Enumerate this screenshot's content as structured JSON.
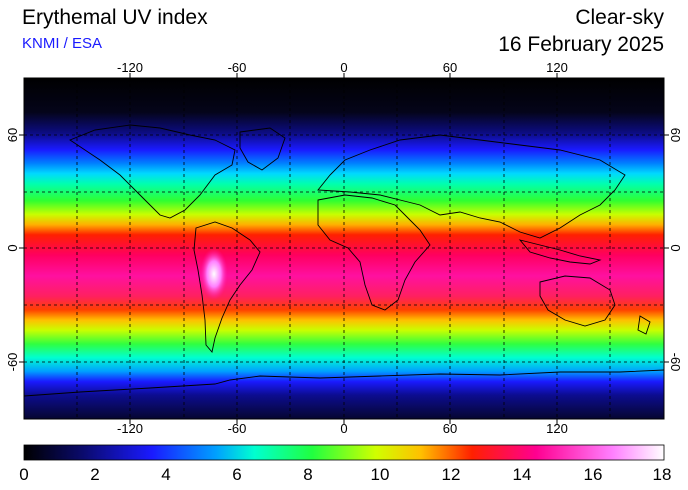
{
  "header": {
    "title": "Erythemal UV index",
    "credit": "KNMI / ESA",
    "sky_condition": "Clear-sky",
    "date": "16 February 2025"
  },
  "map": {
    "longitude_ticks": [
      "-120",
      "-60",
      "0",
      "60",
      "120"
    ],
    "latitude_ticks": [
      "60",
      "0",
      "-60"
    ],
    "gridlines": true,
    "projection": "equirectangular"
  },
  "colorbar": {
    "ticks": [
      "0",
      "2",
      "4",
      "6",
      "8",
      "10",
      "12",
      "14",
      "16",
      "18"
    ],
    "range": [
      0,
      18
    ],
    "colors": [
      "#000000",
      "#0a0a6a",
      "#1a1aff",
      "#00a0ff",
      "#00ffd0",
      "#20ff40",
      "#d0ff00",
      "#ffc000",
      "#ff2000",
      "#ff0090",
      "#ff80ff",
      "#ffffff"
    ]
  }
}
